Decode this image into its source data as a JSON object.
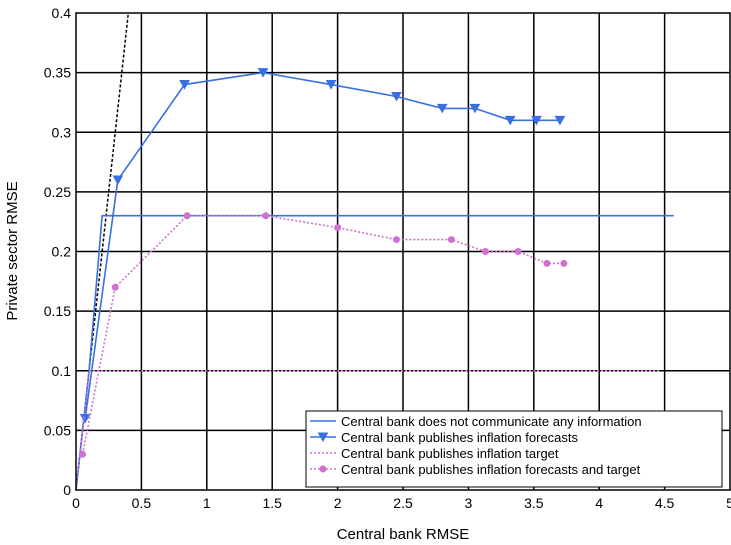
{
  "chart_data": {
    "type": "line",
    "title": "",
    "xlabel": "Central bank RMSE",
    "ylabel": "Private sector RMSE",
    "xlim": [
      0,
      5
    ],
    "ylim": [
      0,
      0.4
    ],
    "grid": true,
    "legend_position": "bottom-right",
    "x_ticks": [
      "0",
      "0.5",
      "1",
      "1.5",
      "2",
      "2.5",
      "3",
      "3.5",
      "4",
      "4.5",
      "5"
    ],
    "x_tick_values": [
      0,
      0.5,
      1,
      1.5,
      2,
      2.5,
      3,
      3.5,
      4,
      4.5,
      5
    ],
    "y_ticks": [
      "0",
      "0.05",
      "0.1",
      "0.15",
      "0.2",
      "0.25",
      "0.3",
      "0.35",
      "0.4"
    ],
    "y_tick_values": [
      0,
      0.05,
      0.1,
      0.15,
      0.2,
      0.25,
      0.3,
      0.35,
      0.4
    ],
    "series": [
      {
        "name": "Central bank does not communicate any information",
        "color": "#3a6fe0",
        "style": "solid",
        "marker": "none",
        "points": [
          [
            0.0,
            0.0
          ],
          [
            0.05,
            0.05
          ],
          [
            0.1,
            0.1
          ],
          [
            0.2,
            0.23
          ],
          [
            4.57,
            0.23
          ]
        ]
      },
      {
        "name": "Central bank publishes inflation forecasts",
        "color": "#3a6fe0",
        "style": "solid",
        "marker": "triangle-down",
        "points": [
          [
            0.07,
            0.06
          ],
          [
            0.32,
            0.26
          ],
          [
            0.83,
            0.34
          ],
          [
            1.43,
            0.35
          ],
          [
            1.95,
            0.34
          ],
          [
            2.45,
            0.33
          ],
          [
            2.8,
            0.32
          ],
          [
            3.05,
            0.32
          ],
          [
            3.32,
            0.31
          ],
          [
            3.52,
            0.31
          ],
          [
            3.7,
            0.31
          ]
        ]
      },
      {
        "name": "Central bank publishes inflation target",
        "color": "#d070d0",
        "style": "dotted",
        "marker": "none",
        "points": [
          [
            0.0,
            0.0
          ],
          [
            0.1,
            0.1
          ],
          [
            4.47,
            0.1
          ]
        ]
      },
      {
        "name": "Central bank publishes inflation forecasts and target",
        "color": "#d070d0",
        "style": "dotted",
        "marker": "circle",
        "points": [
          [
            0.05,
            0.03
          ],
          [
            0.3,
            0.17
          ],
          [
            0.85,
            0.23
          ],
          [
            1.45,
            0.23
          ],
          [
            2.0,
            0.22
          ],
          [
            2.45,
            0.21
          ],
          [
            2.87,
            0.21
          ],
          [
            3.13,
            0.2
          ],
          [
            3.38,
            0.2
          ],
          [
            3.6,
            0.19
          ],
          [
            3.73,
            0.19
          ]
        ]
      }
    ],
    "reference_line": {
      "style": "dashed",
      "color": "#000000",
      "points": [
        [
          0.0,
          0.0
        ],
        [
          0.4,
          0.4
        ]
      ]
    }
  }
}
